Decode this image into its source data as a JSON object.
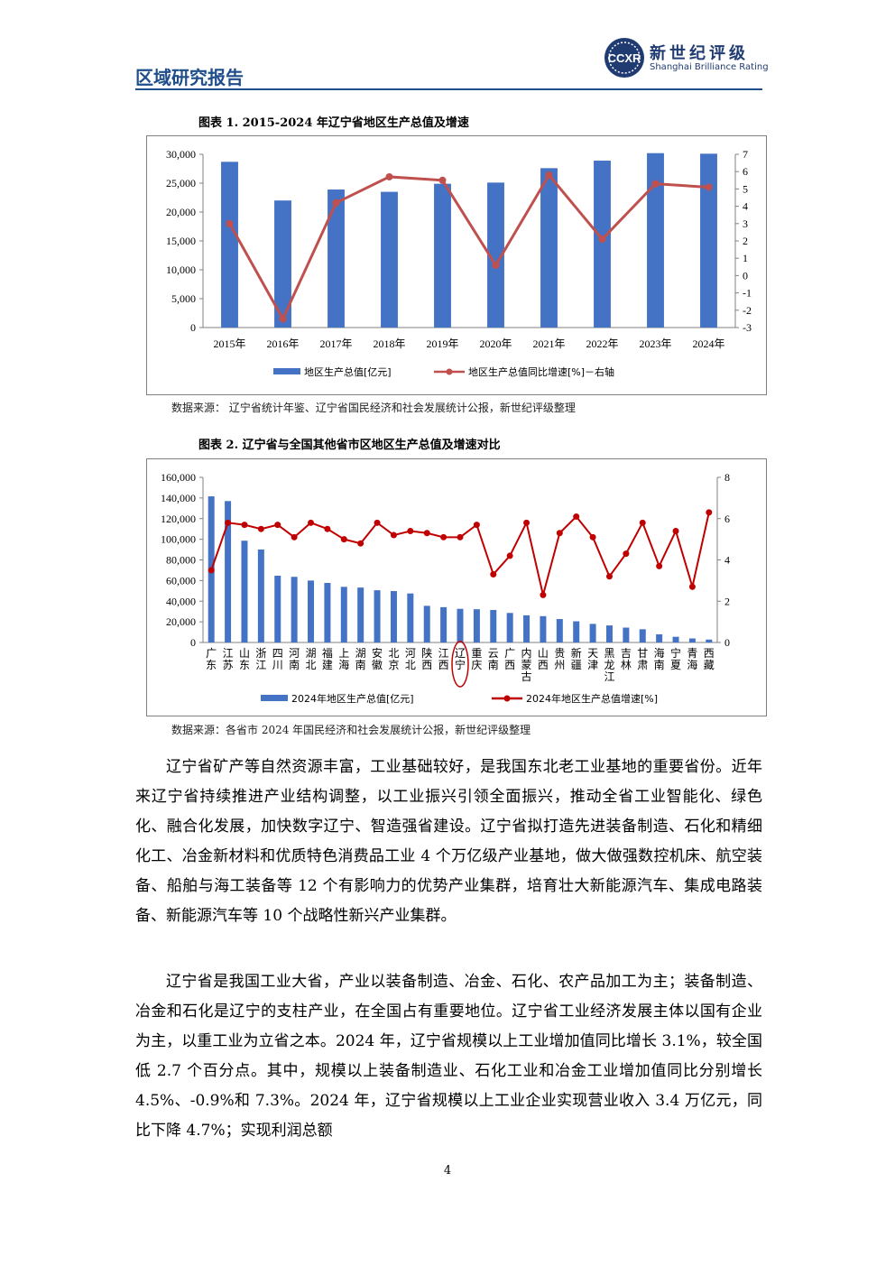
{
  "header": {
    "title": "区域研究报告"
  },
  "logo": {
    "cn": "新世纪评级",
    "en": "Shanghai Brilliance Rating",
    "mark": "CCXR"
  },
  "chart1": {
    "title": "图表 1. 2015-2024 年辽宁省地区生产总值及增速",
    "source": "数据来源：  辽宁省统计年鉴、辽宁省国民经济和社会发展统计公报，新世纪评级整理"
  },
  "chart2": {
    "title": "图表 2. 辽宁省与全国其他省市区地区生产总值及增速对比",
    "source": "数据来源：各省市 2024 年国民经济和社会发展统计公报，新世纪评级整理"
  },
  "chart_data": [
    {
      "type": "bar",
      "categories": [
        "2015年",
        "2016年",
        "2017年",
        "2018年",
        "2019年",
        "2020年",
        "2021年",
        "2022年",
        "2023年",
        "2024年"
      ],
      "series": [
        {
          "name": "地区生产总值[亿元]",
          "type": "bar",
          "axis": "left",
          "values": [
            28700,
            22000,
            23900,
            23500,
            24900,
            25100,
            27600,
            28900,
            30200,
            30100
          ],
          "color": "#4472c4"
        },
        {
          "name": "地区生产总值同比增速[%]－右轴",
          "type": "line",
          "axis": "right",
          "values": [
            3.0,
            -2.5,
            4.2,
            5.7,
            5.5,
            0.6,
            5.8,
            2.1,
            5.3,
            5.1
          ],
          "color": "#c0504d"
        }
      ],
      "yleft_ticks": [
        "0",
        "5,000",
        "10,000",
        "15,000",
        "20,000",
        "25,000",
        "30,000"
      ],
      "yleft_lim": [
        0,
        30000
      ],
      "yright_ticks": [
        "-3",
        "-2",
        "-1",
        "0",
        "1",
        "2",
        "3",
        "4",
        "5",
        "6",
        "7"
      ],
      "yright_lim": [
        -3,
        7
      ],
      "legend": "bottom"
    },
    {
      "type": "bar",
      "categories": [
        "广东",
        "江苏",
        "山东",
        "浙江",
        "四川",
        "河南",
        "湖北",
        "福建",
        "上海",
        "湖南",
        "安徽",
        "北京",
        "河北",
        "陕西",
        "江西",
        "辽宁",
        "重庆",
        "云南",
        "广西",
        "内蒙古",
        "山西",
        "贵州",
        "新疆",
        "天津",
        "黑龙江",
        "吉林",
        "甘肃",
        "海南",
        "宁夏",
        "青海",
        "西藏"
      ],
      "series": [
        {
          "name": "2024年地区生产总值[亿元]",
          "type": "bar",
          "axis": "left",
          "values": [
            141600,
            137000,
            98600,
            90100,
            64700,
            63600,
            60000,
            57700,
            53900,
            53200,
            50600,
            49800,
            47500,
            35500,
            34200,
            32600,
            32200,
            31500,
            28600,
            26300,
            25500,
            22700,
            20500,
            18000,
            16500,
            14400,
            12800,
            7900,
            5500,
            3900,
            2800
          ],
          "color": "#4472c4"
        },
        {
          "name": "2024年地区生产总值增速[%]",
          "type": "line",
          "axis": "right",
          "values": [
            3.5,
            5.8,
            5.7,
            5.5,
            5.7,
            5.1,
            5.8,
            5.5,
            5.0,
            4.8,
            5.8,
            5.2,
            5.4,
            5.3,
            5.1,
            5.1,
            5.7,
            3.3,
            4.2,
            5.8,
            2.3,
            5.3,
            6.1,
            5.1,
            3.2,
            4.3,
            5.8,
            3.7,
            5.4,
            2.7,
            6.3
          ],
          "color": "#c00000"
        }
      ],
      "yleft_ticks": [
        "0",
        "20,000",
        "40,000",
        "60,000",
        "80,000",
        "100,000",
        "120,000",
        "140,000",
        "160,000"
      ],
      "yleft_lim": [
        0,
        160000
      ],
      "yright_ticks": [
        "0",
        "2",
        "4",
        "6",
        "8"
      ],
      "yright_lim": [
        0,
        8
      ],
      "highlight": "辽宁",
      "legend": "bottom"
    }
  ],
  "body": {
    "para1": "辽宁省矿产等自然资源丰富，工业基础较好，是我国东北老工业基地的重要省份。近年来辽宁省持续推进产业结构调整，以工业振兴引领全面振兴，推动全省工业智能化、绿色化、融合化发展，加快数字辽宁、智造强省建设。辽宁省拟打造先进装备制造、石化和精细化工、冶金新材料和优质特色消费品工业 4 个万亿级产业基地，做大做强数控机床、航空装备、船舶与海工装备等 12 个有影响力的优势产业集群，培育壮大新能源汽车、集成电路装备、新能源汽车等 10 个战略性新兴产业集群。",
    "para2": "辽宁省是我国工业大省，产业以装备制造、冶金、石化、农产品加工为主；装备制造、冶金和石化是辽宁的支柱产业，在全国占有重要地位。辽宁省工业经济发展主体以国有企业为主，以重工业为立省之本。2024 年，辽宁省规模以上工业增加值同比增长 3.1%，较全国低 2.7 个百分点。其中，规模以上装备制造业、石化工业和冶金工业增加值同比分别增长 4.5%、-0.9%和 7.3%。2024 年，辽宁省规模以上工业企业实现营业收入 3.4 万亿元，同比下降 4.7%；实现利润总额"
  },
  "footer": {
    "page": "4"
  }
}
